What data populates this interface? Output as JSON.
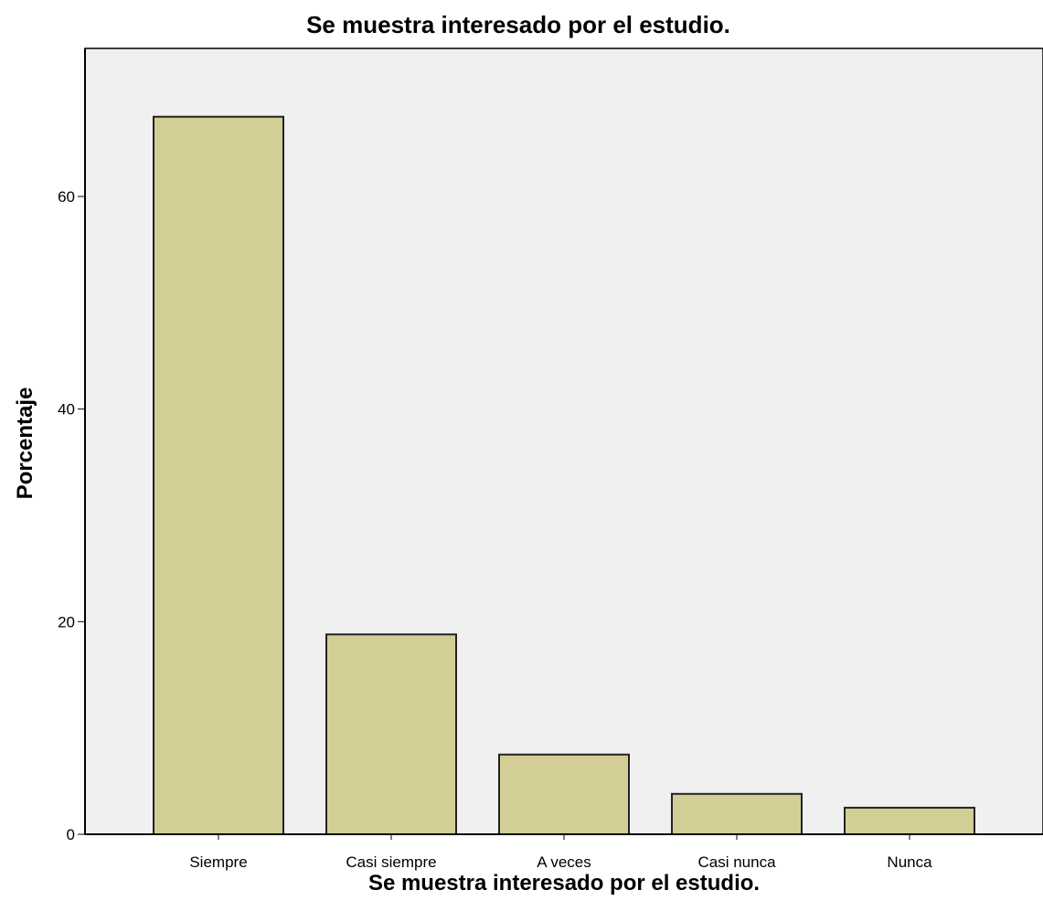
{
  "chart_data": {
    "type": "bar",
    "title": "Se muestra interesado por el estudio.",
    "xlabel": "Se muestra interesado por el estudio.",
    "ylabel": "Porcentaje",
    "categories": [
      "Siempre",
      "Casi siempre",
      "A veces",
      "Casi nunca",
      "Nunca"
    ],
    "values": [
      67.5,
      18.8,
      7.5,
      3.8,
      2.5
    ],
    "ylim": [
      0,
      72
    ],
    "yticks": [
      0,
      20,
      40,
      60
    ],
    "grid": false,
    "legend": "none",
    "colors": {
      "bar_fill": "#d3cd96",
      "bar_stroke": "#222222",
      "plot_background": "#f0f0f0",
      "axis": "#000000"
    }
  }
}
